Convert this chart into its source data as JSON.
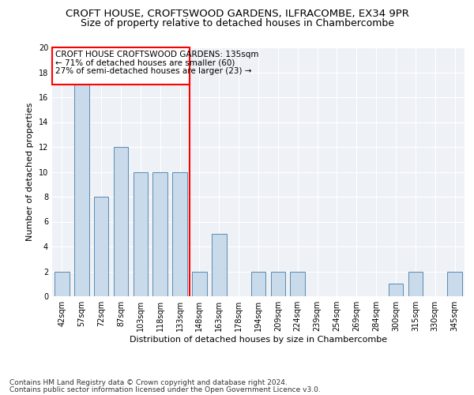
{
  "title": "CROFT HOUSE, CROFTSWOOD GARDENS, ILFRACOMBE, EX34 9PR",
  "subtitle": "Size of property relative to detached houses in Chambercombe",
  "xlabel": "Distribution of detached houses by size in Chambercombe",
  "ylabel": "Number of detached properties",
  "categories": [
    "42sqm",
    "57sqm",
    "72sqm",
    "87sqm",
    "103sqm",
    "118sqm",
    "133sqm",
    "148sqm",
    "163sqm",
    "178sqm",
    "194sqm",
    "209sqm",
    "224sqm",
    "239sqm",
    "254sqm",
    "269sqm",
    "284sqm",
    "300sqm",
    "315sqm",
    "330sqm",
    "345sqm"
  ],
  "values": [
    2,
    17,
    8,
    12,
    10,
    10,
    10,
    2,
    5,
    0,
    2,
    2,
    2,
    0,
    0,
    0,
    0,
    1,
    2,
    0,
    2
  ],
  "bar_color": "#c9daea",
  "bar_edge_color": "#5a8ab0",
  "red_line_index": 6.5,
  "red_line_label": "CROFT HOUSE CROFTSWOOD GARDENS: 135sqm",
  "annotation_line1": "← 71% of detached houses are smaller (60)",
  "annotation_line2": "27% of semi-detached houses are larger (23) →",
  "ylim": [
    0,
    20
  ],
  "yticks": [
    0,
    2,
    4,
    6,
    8,
    10,
    12,
    14,
    16,
    18,
    20
  ],
  "footer1": "Contains HM Land Registry data © Crown copyright and database right 2024.",
  "footer2": "Contains public sector information licensed under the Open Government Licence v3.0.",
  "background_color": "#eef2f7",
  "bar_width": 0.75,
  "title_fontsize": 9.5,
  "subtitle_fontsize": 9,
  "axis_label_fontsize": 8,
  "tick_fontsize": 7,
  "annotation_fontsize": 7.5,
  "footer_fontsize": 6.5
}
